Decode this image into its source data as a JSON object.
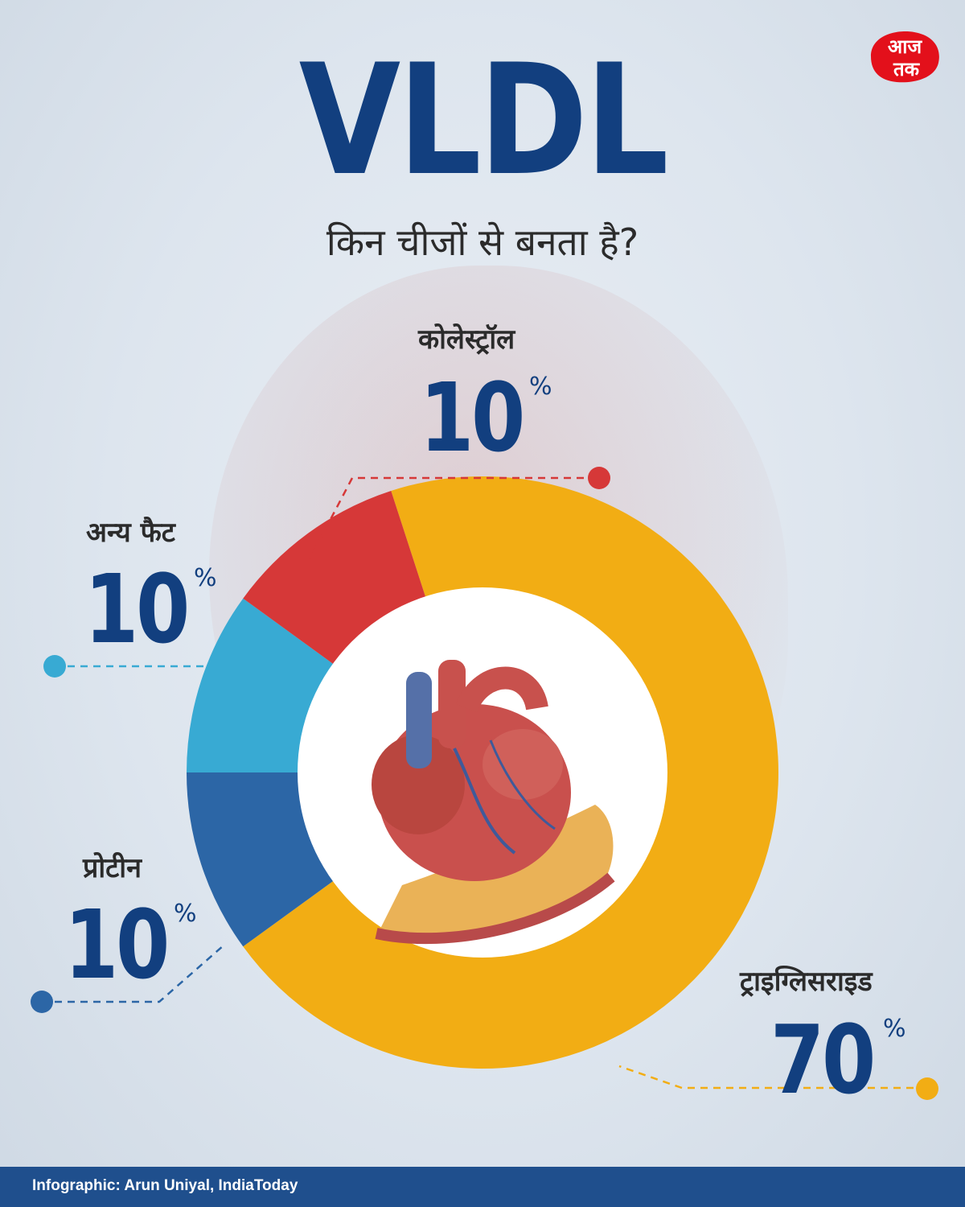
{
  "header": {
    "title": "VLDL",
    "subtitle": "किन चीजों से बनता है?"
  },
  "logo": {
    "text": "आज तक",
    "top": "आज",
    "bottom": "तक"
  },
  "chart_data": {
    "type": "pie",
    "donut": true,
    "unit": "%",
    "slices": [
      {
        "label": "ट्राइग्लिसराइड",
        "value": 70,
        "color": "#f2ad14"
      },
      {
        "label": "प्रोटीन",
        "value": 10,
        "color": "#2c66a6"
      },
      {
        "label": "अन्य फैट",
        "value": 10,
        "color": "#38aad3"
      },
      {
        "label": "कोलेस्ट्रॉल",
        "value": 10,
        "color": "#d63838"
      }
    ]
  },
  "callouts": {
    "cholesterol": {
      "label": "कोलेस्ट्रॉल",
      "value": "10",
      "sign": "%",
      "dot_color": "#d63838"
    },
    "other_fat": {
      "label": "अन्य फैट",
      "value": "10",
      "sign": "%",
      "dot_color": "#38aad3"
    },
    "protein": {
      "label": "प्रोटीन",
      "value": "10",
      "sign": "%",
      "dot_color": "#2c66a6"
    },
    "triglyceride": {
      "label": "ट्राइग्लिसराइड",
      "value": "70",
      "sign": "%",
      "dot_color": "#f2ad14"
    }
  },
  "center_image": "heart-illustration",
  "footer": {
    "credit": "Infographic: Arun Uniyal, IndiaToday"
  }
}
